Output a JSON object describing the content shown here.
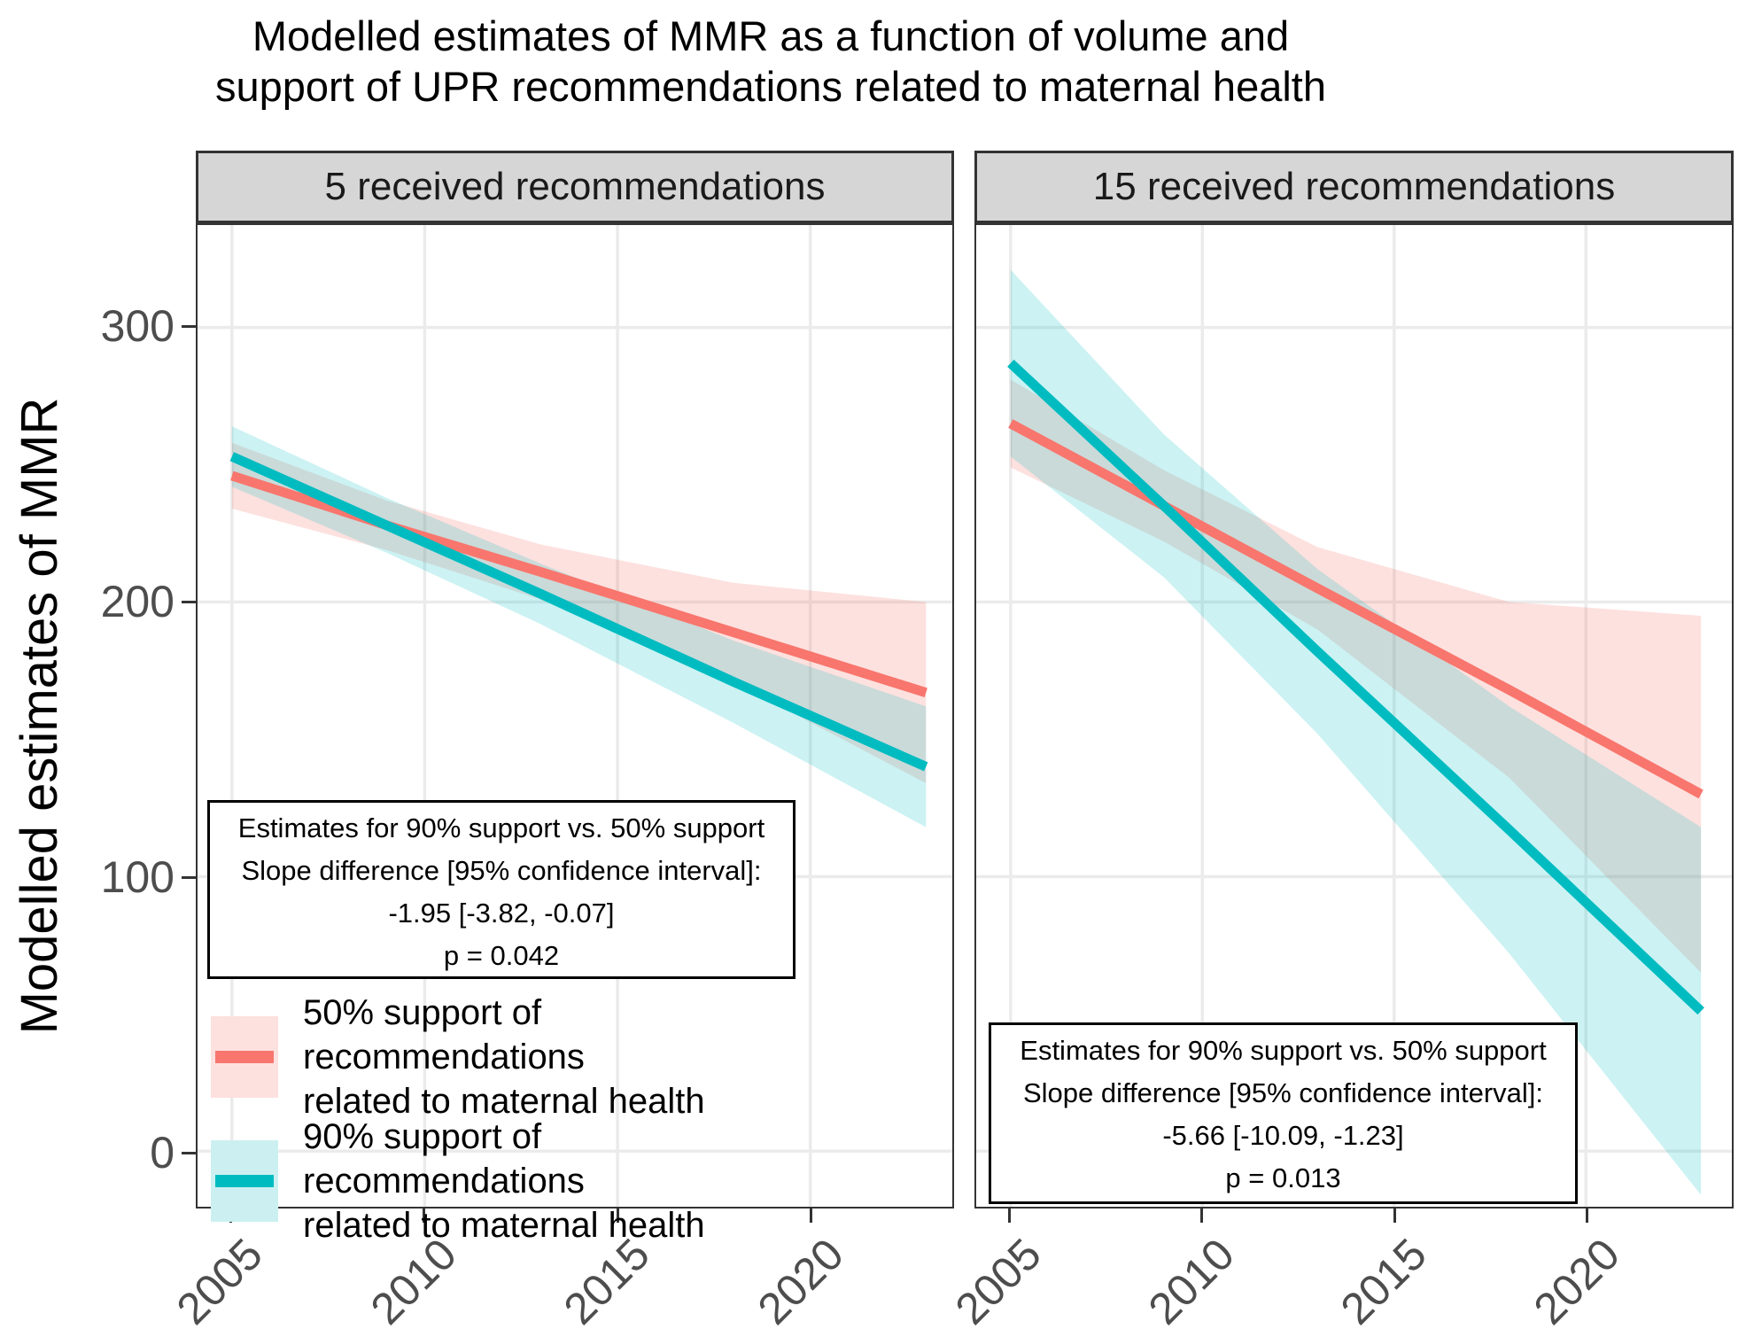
{
  "title": {
    "line1": "Modelled estimates of MMR as a function of volume and",
    "line2": "support of UPR recommendations related to maternal health"
  },
  "y_axis": {
    "label": "Modelled estimates of MMR",
    "tick_labels": [
      "300",
      "200",
      "100",
      "0"
    ],
    "tick_values": [
      300,
      200,
      100,
      0
    ]
  },
  "x_axis": {
    "tick_labels": [
      "2005",
      "2010",
      "2015",
      "2020"
    ],
    "tick_values": [
      2005,
      2010,
      2015,
      2020
    ]
  },
  "legend": {
    "items": [
      {
        "line1": "50% support of recommendations",
        "line2": "related to maternal health",
        "line_color": "#F8766D",
        "band_color": "#FDE1DF"
      },
      {
        "line1": "90% support of recommendations",
        "line2": "related to maternal health",
        "line_color": "#00BCC1",
        "band_color": "#CCF0F1"
      }
    ]
  },
  "colors": {
    "red_line": "#F8766D",
    "teal_line": "#00BCC1",
    "red_band": "rgba(248,118,109,0.22)",
    "teal_band": "rgba(0,191,196,0.20)",
    "strip_bg": "#D6D6D6",
    "grid": "#EBEBEB",
    "panel_border": "#333333",
    "tick_text": "#4D4D4D"
  },
  "chart_data": {
    "type": "line",
    "title": "Modelled estimates of MMR as a function of volume and support of UPR recommendations related to maternal health",
    "xlabel": "",
    "ylabel": "Modelled estimates of MMR",
    "x_ticks": [
      2005,
      2010,
      2015,
      2020
    ],
    "y_ticks": [
      0,
      100,
      200,
      300
    ],
    "ylim": [
      -20,
      337
    ],
    "xlim": [
      2004.1,
      2023.9
    ],
    "grid": "major-only",
    "legend_position": "inside-left-panel",
    "sample_years": [
      2005,
      2009,
      2013,
      2018,
      2023
    ],
    "facets": [
      {
        "label": "5 received recommendations",
        "series": [
          {
            "name": "50% support of recommendations related to maternal health",
            "color": "#F8766D",
            "band_color": "rgba(248,118,109,0.22)",
            "line": [
              246,
              228,
              211,
              189,
              167
            ],
            "ci_halfwidth": [
              12,
              9,
              10,
              18,
              33
            ]
          },
          {
            "name": "90% support of recommendations related to maternal health",
            "color": "#00BCC1",
            "band_color": "rgba(0,191,196,0.20)",
            "line": [
              253,
              228,
              203,
              171,
              140
            ],
            "ci_halfwidth": [
              11,
              10,
              11,
              15,
              22
            ]
          }
        ],
        "annotation": [
          "Estimates for 90% support vs. 50% support",
          "Slope difference [95% confidence interval]:",
          "-1.95 [-3.82, -0.07]",
          "p = 0.042"
        ]
      },
      {
        "label": "15 received recommendations",
        "series": [
          {
            "name": "50% support of recommendations related to maternal health",
            "color": "#F8766D",
            "band_color": "rgba(248,118,109,0.22)",
            "line": [
              265,
              235,
              205,
              168,
              130
            ],
            "ci_halfwidth": [
              16,
              13,
              15,
              32,
              65
            ]
          },
          {
            "name": "90% support of recommendations related to maternal health",
            "color": "#00BCC1",
            "band_color": "rgba(0,191,196,0.20)",
            "line": [
              287,
              235,
              182,
              117,
              51
            ],
            "ci_halfwidth": [
              34,
              26,
              30,
              45,
              67
            ]
          }
        ],
        "annotation": [
          "Estimates for 90% support vs. 50% support",
          "Slope difference [95% confidence interval]:",
          "-5.66 [-10.09, -1.23]",
          "p = 0.013"
        ]
      }
    ]
  }
}
